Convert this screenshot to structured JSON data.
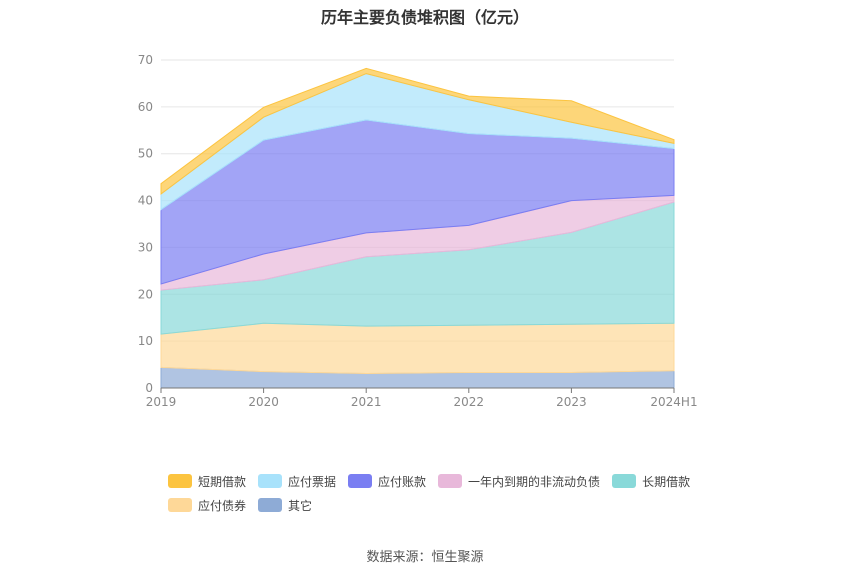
{
  "chart_data": {
    "type": "area",
    "stacked": true,
    "title": "历年主要负债堆积图（亿元）",
    "categories": [
      "2019",
      "2020",
      "2021",
      "2022",
      "2023",
      "2024H1"
    ],
    "ylim": [
      0,
      70
    ],
    "yticks": [
      0,
      10,
      20,
      30,
      40,
      50,
      60,
      70
    ],
    "grid": true,
    "legend_position": "bottom",
    "series": [
      {
        "name": "其它",
        "color": "#8eabd6",
        "values": [
          4.4,
          3.5,
          3.1,
          3.3,
          3.3,
          3.7
        ]
      },
      {
        "name": "应付债券",
        "color": "#fed898",
        "values": [
          7.1,
          10.3,
          10.1,
          10.1,
          10.3,
          10.1
        ]
      },
      {
        "name": "长期借款",
        "color": "#89d9d9",
        "values": [
          9.4,
          9.3,
          14.8,
          16.1,
          19.6,
          25.9
        ]
      },
      {
        "name": "一年内到期的非流动负债",
        "color": "#e8b8da",
        "values": [
          1.3,
          5.5,
          5.1,
          5.2,
          6.8,
          1.4
        ]
      },
      {
        "name": "应付账款",
        "color": "#7a7ef2",
        "values": [
          15.9,
          24.3,
          24.1,
          19.6,
          13.3,
          10.0
        ]
      },
      {
        "name": "应付票据",
        "color": "#a8e2fb",
        "values": [
          3.3,
          4.9,
          9.9,
          7.2,
          3.4,
          1.1
        ]
      },
      {
        "name": "短期借款",
        "color": "#fcc440",
        "values": [
          2.2,
          2.1,
          1.1,
          0.8,
          4.6,
          0.8
        ]
      }
    ],
    "legend_order": [
      "短期借款",
      "应付票据",
      "应付账款",
      "一年内到期的非流动负债",
      "长期借款",
      "应付债券",
      "其它"
    ]
  },
  "source_text": "数据来源：恒生聚源"
}
